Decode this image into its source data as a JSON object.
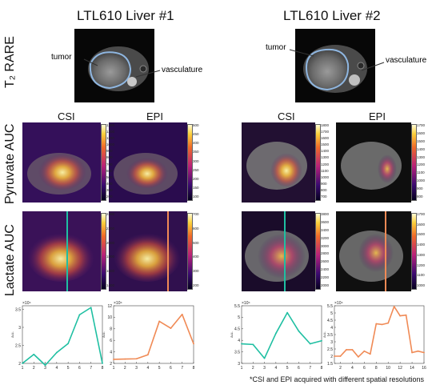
{
  "titles": {
    "liver1": "LTL610 Liver #1",
    "liver2": "LTL610 Liver #2"
  },
  "row_labels": {
    "rare": "T₂ RARE",
    "pyruvate": "Pyruvate AUC",
    "lactate": "Lactate AUC"
  },
  "column_labels": {
    "csi_1": "CSI",
    "epi_1": "EPI",
    "csi_2": "CSI",
    "epi_2": "EPI"
  },
  "annotations": {
    "liver1_tumor": "tumor",
    "liver1_vasculature": "vasculature",
    "liver2_tumor": "tumor",
    "liver2_vasculature": "vasculature"
  },
  "colorbars": {
    "pyr_csi_1": [
      "1300",
      "1200",
      "1100",
      "1000",
      "900",
      "800",
      "700",
      "600",
      "500",
      "400",
      "300",
      "200"
    ],
    "pyr_epi_1": [
      "500",
      "450",
      "400",
      "350",
      "300",
      "250",
      "200",
      "150",
      "100"
    ],
    "pyr_csi_2": [
      "1800",
      "1700",
      "1600",
      "1500",
      "1400",
      "1300",
      "1200",
      "1100",
      "1000",
      "900",
      "800",
      "700"
    ],
    "pyr_epi_2": [
      "1700",
      "1600",
      "1500",
      "1400",
      "1300",
      "1200",
      "1100",
      "1000",
      "900",
      "800"
    ],
    "lac_csi_1": [
      "2400",
      "2200",
      "2000",
      "1800",
      "1600",
      "1400"
    ],
    "lac_epi_1": [
      "700",
      "600",
      "500",
      "400",
      "300",
      "200"
    ],
    "lac_csi_2": [
      "3800",
      "3600",
      "3400",
      "3200",
      "3000",
      "2800",
      "2600",
      "2400",
      "2200",
      "2000"
    ],
    "lac_epi_2": [
      "1700",
      "1600",
      "1500",
      "1400",
      "1300",
      "1200",
      "1100",
      "1000"
    ]
  },
  "colors": {
    "csi_line": "#1fbfa2",
    "epi_line": "#f08a55",
    "outline": "#7fb0e6"
  },
  "footnote": "*CSI and EPI acquired with different spatial resolutions",
  "chart_data": [
    {
      "type": "line",
      "series": [
        {
          "values": [
            2.0,
            2.25,
            1.95,
            2.3,
            2.55,
            3.35,
            3.55,
            2.0
          ]
        }
      ],
      "x": [
        1,
        2,
        3,
        4,
        5,
        6,
        7,
        8
      ],
      "xlim": [
        1,
        8
      ],
      "ylim": [
        2,
        3.6
      ],
      "ylabel": "a.u.",
      "exponent": "×10⁴",
      "yticks": [
        "2",
        "2.5",
        "3",
        "3.5"
      ],
      "xticks": [
        "1",
        "2",
        "3",
        "4",
        "5",
        "6",
        "7",
        "8"
      ],
      "color": "#1fbfa2"
    },
    {
      "type": "line",
      "series": [
        {
          "values": [
            2.7,
            2.75,
            2.8,
            3.5,
            9.3,
            8.1,
            10.5,
            5.4
          ]
        }
      ],
      "x": [
        1,
        2,
        3,
        4,
        5,
        6,
        7,
        8
      ],
      "xlim": [
        1,
        8
      ],
      "ylim": [
        2,
        12
      ],
      "ylabel": "a.u.",
      "exponent": "×10⁴",
      "yticks": [
        "2",
        "4",
        "6",
        "8",
        "10",
        "12"
      ],
      "xticks": [
        "1",
        "2",
        "3",
        "4",
        "5",
        "6",
        "7",
        "8"
      ],
      "color": "#f08a55"
    },
    {
      "type": "line",
      "series": [
        {
          "values": [
            3.85,
            3.82,
            3.22,
            4.3,
            5.2,
            4.4,
            3.85,
            3.98
          ]
        }
      ],
      "x": [
        1,
        2,
        3,
        4,
        5,
        6,
        7,
        8
      ],
      "xlim": [
        1,
        8
      ],
      "ylim": [
        3,
        5.5
      ],
      "ylabel": "a.u.",
      "exponent": "×10⁴",
      "yticks": [
        "3",
        "3.5",
        "4",
        "4.5",
        "5",
        "5.5"
      ],
      "xticks": [
        "1",
        "2",
        "3",
        "4",
        "5",
        "6",
        "7",
        "8"
      ],
      "color": "#1fbfa2"
    },
    {
      "type": "line",
      "series": [
        {
          "values": [
            2.0,
            2.0,
            2.45,
            2.45,
            1.95,
            2.35,
            2.15,
            4.25,
            4.2,
            4.3,
            5.45,
            4.8,
            4.85,
            2.25,
            2.35,
            2.25
          ]
        }
      ],
      "x": [
        1,
        2,
        3,
        4,
        5,
        6,
        7,
        8,
        9,
        10,
        11,
        12,
        13,
        14,
        15,
        16
      ],
      "xlim": [
        1,
        16
      ],
      "ylim": [
        1.5,
        5.5
      ],
      "ylabel": "a.u.",
      "exponent": "×10⁴",
      "yticks": [
        "1.5",
        "2",
        "2.5",
        "3",
        "3.5",
        "4",
        "4.5",
        "5",
        "5.5"
      ],
      "xticks": [
        "2",
        "4",
        "6",
        "8",
        "10",
        "12",
        "14",
        "16"
      ],
      "color": "#f08a55"
    }
  ]
}
